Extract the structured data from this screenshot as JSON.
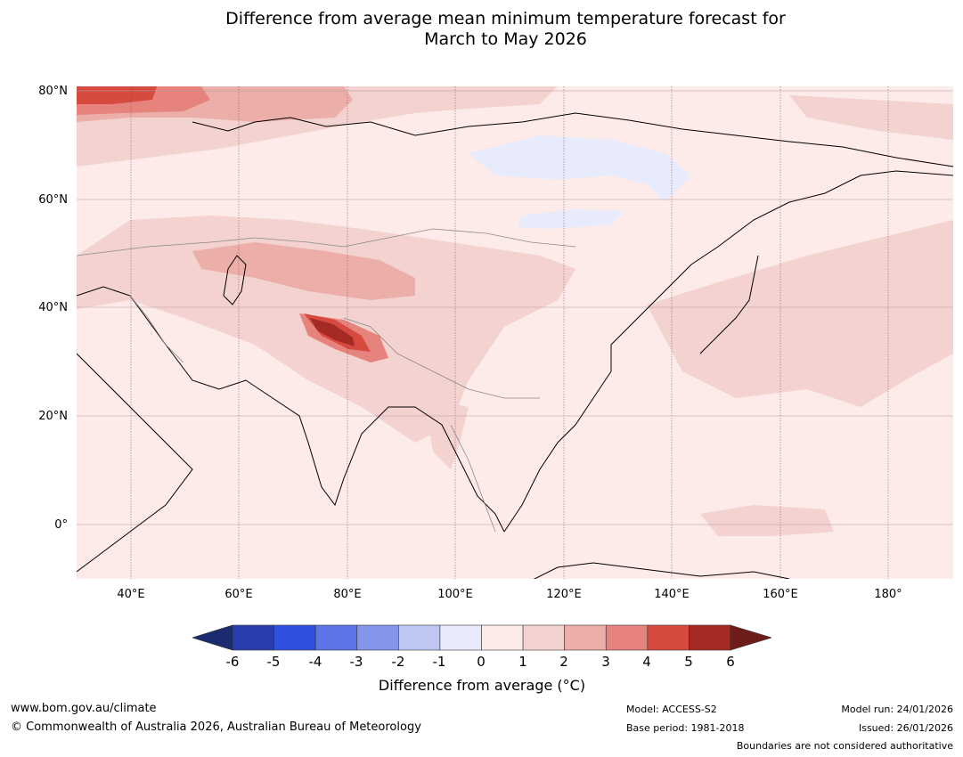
{
  "title": {
    "line1": "Difference from average mean minimum temperature forecast for",
    "line2": "March to May 2026"
  },
  "map": {
    "region": "Asia",
    "latitude_labels": [
      "80°N",
      "60°N",
      "40°N",
      "20°N",
      "0°"
    ],
    "longitude_labels": [
      "40°E",
      "60°E",
      "80°E",
      "100°E",
      "120°E",
      "140°E",
      "160°E",
      "180°"
    ],
    "lat_range": [
      -10,
      80
    ],
    "lon_range": [
      30,
      191
    ]
  },
  "legend": {
    "title": "Difference from average (°C)",
    "ticks": [
      "-6",
      "-5",
      "-4",
      "-3",
      "-2",
      "-1",
      "0",
      "1",
      "2",
      "3",
      "4",
      "5",
      "6"
    ],
    "colors": {
      "below_min": "#1c2a72",
      "bins": [
        "#2a3dad",
        "#3150e0",
        "#5c74e6",
        "#8596ea",
        "#bec6f3",
        "#e7ebfb",
        "#fcebe8",
        "#f3d2cf",
        "#ecaea9",
        "#e6837c",
        "#d64a40",
        "#a52a24"
      ],
      "above_max": "#6f1d1a"
    }
  },
  "footer": {
    "website": "www.bom.gov.au/climate",
    "copyright": "© Commonwealth of Australia 2026, Australian Bureau of Meteorology",
    "model": "Model: ACCESS-S2",
    "base_period": "Base period: 1981-2018",
    "model_run": "Model run: 24/01/2026",
    "issued": "Issued: 26/01/2026",
    "disclaimer": "Boundaries are not considered authoritative"
  }
}
